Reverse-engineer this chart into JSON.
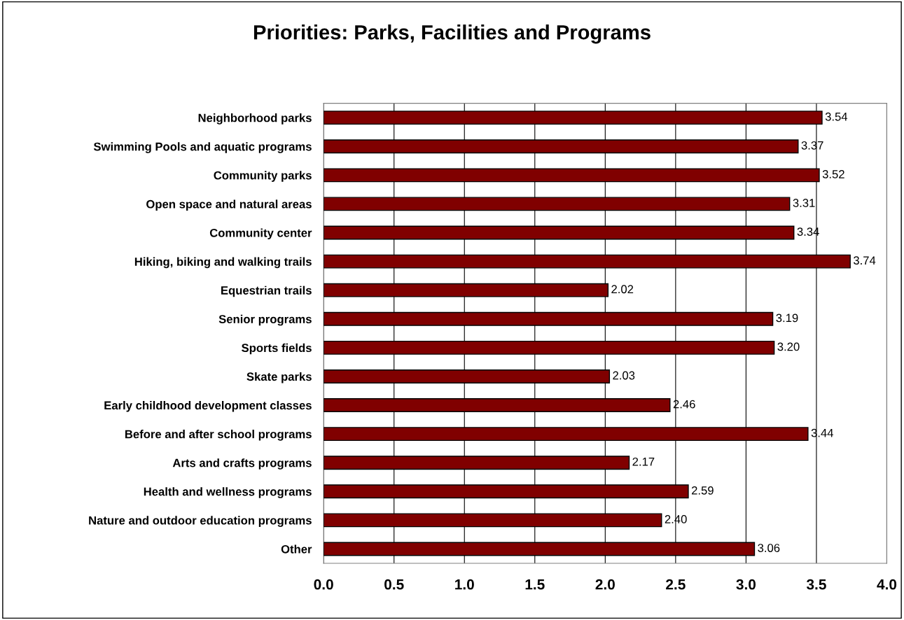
{
  "chart_data": {
    "type": "bar",
    "orientation": "horizontal",
    "title": "Priorities: Parks, Facilities and Programs",
    "categories": [
      "Neighborhood parks",
      "Swimming Pools and aquatic programs",
      "Community parks",
      "Open space and natural areas",
      "Community center",
      "Hiking, biking and walking trails",
      "Equestrian trails",
      "Senior programs",
      "Sports fields",
      "Skate parks",
      "Early childhood development classes",
      "Before and after school programs",
      "Arts and crafts programs",
      "Health and wellness programs",
      "Nature and outdoor education programs",
      "Other"
    ],
    "values": [
      3.54,
      3.37,
      3.52,
      3.31,
      3.34,
      3.74,
      2.02,
      3.19,
      3.2,
      2.03,
      2.46,
      3.44,
      2.17,
      2.59,
      2.4,
      3.06
    ],
    "value_labels": [
      "3.54",
      "3.37",
      "3.52",
      "3.31",
      "3.34",
      "3.74",
      "2.02",
      "3.19",
      "3.20",
      "2.03",
      "2.46",
      "3.44",
      "2.17",
      "2.59",
      "2.40",
      "3.06"
    ],
    "color": "#800000",
    "xlim": [
      0,
      4
    ],
    "xticks": [
      {
        "value": 0,
        "label": "0.0"
      },
      {
        "value": 0.5,
        "label": "0.5"
      },
      {
        "value": 1,
        "label": "1.0"
      },
      {
        "value": 1.5,
        "label": "1.5"
      },
      {
        "value": 2,
        "label": "2.0"
      },
      {
        "value": 2.5,
        "label": "2.5"
      },
      {
        "value": 3,
        "label": "3.0"
      },
      {
        "value": 3.5,
        "label": "3.5"
      },
      {
        "value": 4,
        "label": "4.0"
      }
    ],
    "grid": "x"
  }
}
